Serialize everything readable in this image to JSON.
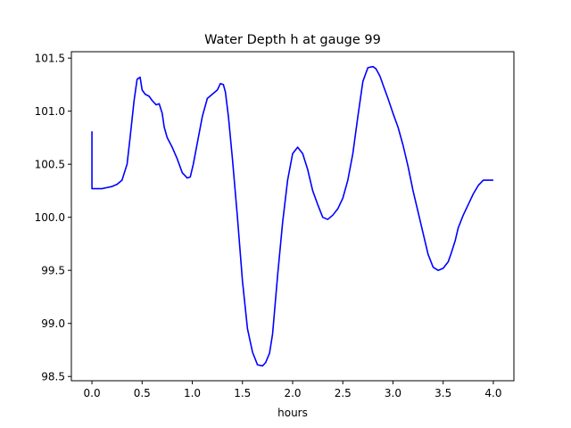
{
  "chart_data": {
    "type": "line",
    "title": "Water Depth h at gauge 99",
    "xlabel": "hours",
    "ylabel": "",
    "xlim": [
      -0.205,
      4.205
    ],
    "ylim": [
      98.46,
      101.56
    ],
    "xticks": [
      0.0,
      0.5,
      1.0,
      1.5,
      2.0,
      2.5,
      3.0,
      3.5,
      4.0
    ],
    "xtick_labels": [
      "0.0",
      "0.5",
      "1.0",
      "1.5",
      "2.0",
      "2.5",
      "3.0",
      "3.5",
      "4.0"
    ],
    "yticks": [
      98.5,
      99.0,
      99.5,
      100.0,
      100.5,
      101.0,
      101.5
    ],
    "ytick_labels": [
      "98.5",
      "99.0",
      "99.5",
      "100.0",
      "100.5",
      "101.0",
      "101.5"
    ],
    "grid": false,
    "series": [
      {
        "color": "#0000ff",
        "x": [
          0.0,
          0.0,
          0.05,
          0.1,
          0.15,
          0.2,
          0.25,
          0.3,
          0.35,
          0.38,
          0.42,
          0.45,
          0.48,
          0.5,
          0.53,
          0.57,
          0.6,
          0.64,
          0.67,
          0.7,
          0.72,
          0.75,
          0.8,
          0.85,
          0.9,
          0.95,
          0.98,
          1.01,
          1.05,
          1.1,
          1.15,
          1.2,
          1.25,
          1.28,
          1.31,
          1.33,
          1.36,
          1.4,
          1.45,
          1.5,
          1.55,
          1.6,
          1.65,
          1.7,
          1.73,
          1.77,
          1.8,
          1.85,
          1.9,
          1.95,
          2.0,
          2.05,
          2.1,
          2.15,
          2.2,
          2.25,
          2.3,
          2.35,
          2.4,
          2.45,
          2.5,
          2.55,
          2.6,
          2.65,
          2.7,
          2.75,
          2.8,
          2.83,
          2.87,
          2.9,
          2.95,
          3.0,
          3.05,
          3.1,
          3.15,
          3.2,
          3.25,
          3.3,
          3.35,
          3.4,
          3.45,
          3.5,
          3.55,
          3.58,
          3.62,
          3.65,
          3.7,
          3.75,
          3.8,
          3.85,
          3.9,
          3.95,
          4.0
        ],
        "y": [
          100.81,
          100.27,
          100.27,
          100.27,
          100.28,
          100.29,
          100.31,
          100.35,
          100.5,
          100.75,
          101.1,
          101.3,
          101.32,
          101.2,
          101.16,
          101.14,
          101.1,
          101.06,
          101.07,
          100.98,
          100.85,
          100.75,
          100.66,
          100.55,
          100.42,
          100.37,
          100.38,
          100.5,
          100.7,
          100.95,
          101.12,
          101.16,
          101.2,
          101.26,
          101.25,
          101.18,
          100.95,
          100.55,
          100.0,
          99.4,
          98.95,
          98.73,
          98.61,
          98.6,
          98.63,
          98.72,
          98.9,
          99.45,
          99.95,
          100.35,
          100.6,
          100.66,
          100.6,
          100.45,
          100.25,
          100.12,
          100.0,
          99.98,
          100.02,
          100.08,
          100.18,
          100.35,
          100.6,
          100.95,
          101.28,
          101.41,
          101.42,
          101.4,
          101.33,
          101.25,
          101.12,
          100.98,
          100.85,
          100.68,
          100.48,
          100.25,
          100.05,
          99.85,
          99.65,
          99.53,
          99.5,
          99.52,
          99.58,
          99.66,
          99.78,
          99.9,
          100.02,
          100.12,
          100.22,
          100.3,
          100.35,
          100.35,
          100.35
        ]
      }
    ]
  }
}
